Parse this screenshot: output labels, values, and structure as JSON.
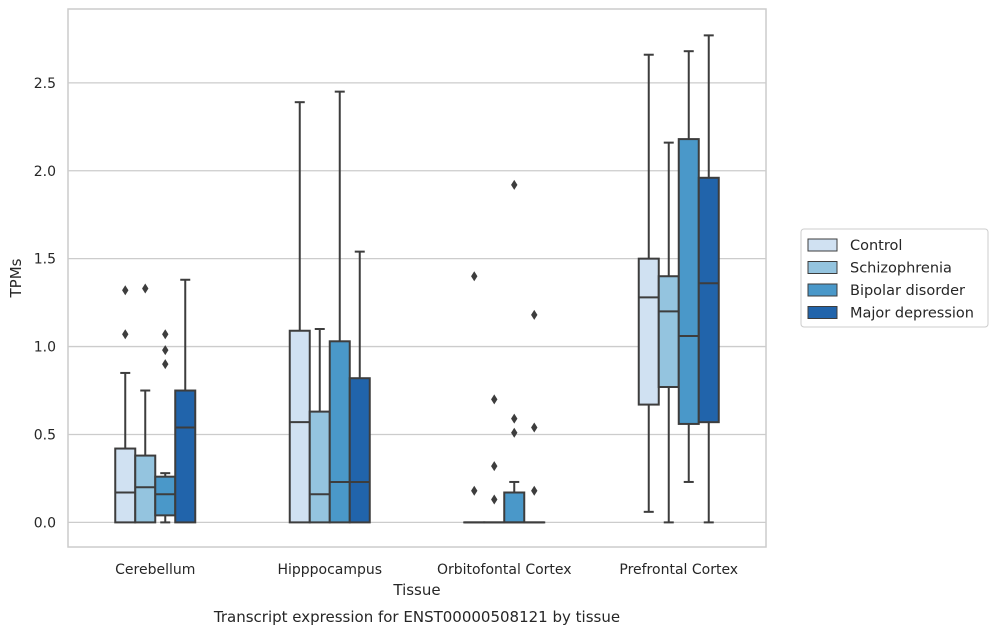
{
  "chart_data": {
    "type": "box",
    "title": "",
    "caption": "Transcript expression for ENST00000508121 by tissue",
    "xlabel": "Tissue",
    "ylabel": "TPMs",
    "ylim": [
      -0.14,
      2.92
    ],
    "yticks": [
      0.0,
      0.5,
      1.0,
      1.5,
      2.0,
      2.5
    ],
    "ytick_labels": [
      "0.0",
      "0.5",
      "1.0",
      "1.5",
      "2.0",
      "2.5"
    ],
    "grid": "horizontal",
    "legend_position": "right",
    "categories": [
      "Cerebellum",
      "Hipppocampus",
      "Orbitofontal Cortex",
      "Prefrontal Cortex"
    ],
    "series": [
      {
        "name": "Control",
        "color": "#d0e1f2",
        "boxes": [
          {
            "whislo": 0.0,
            "q1": 0.0,
            "med": 0.17,
            "q3": 0.42,
            "whishi": 0.85,
            "fliers": [
              1.07,
              1.32
            ]
          },
          {
            "whislo": 0.0,
            "q1": 0.0,
            "med": 0.57,
            "q3": 1.09,
            "whishi": 2.39,
            "fliers": []
          },
          {
            "whislo": 0.0,
            "q1": 0.0,
            "med": 0.0,
            "q3": 0.0,
            "whishi": 0.0,
            "fliers": [
              0.18,
              1.4
            ]
          },
          {
            "whislo": 0.06,
            "q1": 0.67,
            "med": 1.28,
            "q3": 1.5,
            "whishi": 2.66,
            "fliers": []
          }
        ]
      },
      {
        "name": "Schizophrenia",
        "color": "#94c4df",
        "boxes": [
          {
            "whislo": 0.0,
            "q1": 0.0,
            "med": 0.2,
            "q3": 0.38,
            "whishi": 0.75,
            "fliers": [
              1.33
            ]
          },
          {
            "whislo": 0.0,
            "q1": 0.0,
            "med": 0.16,
            "q3": 0.63,
            "whishi": 1.1,
            "fliers": []
          },
          {
            "whislo": 0.0,
            "q1": 0.0,
            "med": 0.0,
            "q3": 0.0,
            "whishi": 0.0,
            "fliers": [
              0.13,
              0.32,
              0.7
            ]
          },
          {
            "whislo": 0.0,
            "q1": 0.77,
            "med": 1.2,
            "q3": 1.4,
            "whishi": 2.16,
            "fliers": []
          }
        ]
      },
      {
        "name": "Bipolar disorder",
        "color": "#4a98c9",
        "boxes": [
          {
            "whislo": 0.0,
            "q1": 0.04,
            "med": 0.16,
            "q3": 0.26,
            "whishi": 0.28,
            "fliers": [
              0.9,
              0.98,
              1.07
            ]
          },
          {
            "whislo": 0.0,
            "q1": 0.0,
            "med": 0.23,
            "q3": 1.03,
            "whishi": 2.45,
            "fliers": []
          },
          {
            "whislo": 0.0,
            "q1": 0.0,
            "med": 0.0,
            "q3": 0.17,
            "whishi": 0.23,
            "fliers": [
              0.51,
              0.59,
              1.92
            ]
          },
          {
            "whislo": 0.23,
            "q1": 0.56,
            "med": 1.06,
            "q3": 2.18,
            "whishi": 2.68,
            "fliers": []
          }
        ]
      },
      {
        "name": "Major depression",
        "color": "#2164ab",
        "boxes": [
          {
            "whislo": 0.0,
            "q1": 0.0,
            "med": 0.54,
            "q3": 0.75,
            "whishi": 1.38,
            "fliers": []
          },
          {
            "whislo": 0.0,
            "q1": 0.0,
            "med": 0.23,
            "q3": 0.82,
            "whishi": 1.54,
            "fliers": []
          },
          {
            "whislo": 0.0,
            "q1": 0.0,
            "med": 0.0,
            "q3": 0.0,
            "whishi": 0.0,
            "fliers": [
              0.18,
              0.54,
              1.18
            ]
          },
          {
            "whislo": 0.0,
            "q1": 0.57,
            "med": 1.36,
            "q3": 1.96,
            "whishi": 2.77,
            "fliers": []
          }
        ]
      }
    ]
  },
  "colors": {
    "box_edge": "#3d3d3d",
    "grid": "#cccccc",
    "frame": "#cccccc"
  }
}
